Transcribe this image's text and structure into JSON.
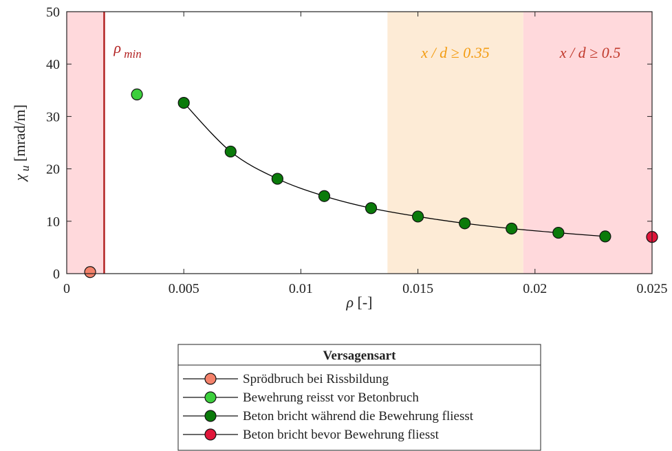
{
  "chart_data": {
    "type": "scatter",
    "xlabel": "ρ [-]",
    "ylabel": "χ u [mrad/m]",
    "xlim": [
      0,
      0.025
    ],
    "ylim": [
      0,
      50
    ],
    "x_ticks": [
      0,
      0.005,
      0.01,
      0.015,
      0.02,
      0.025
    ],
    "x_tick_labels": [
      "0",
      "0.005",
      "0.01",
      "0.015",
      "0.02",
      "0.025"
    ],
    "y_ticks": [
      0,
      10,
      20,
      30,
      40,
      50
    ],
    "y_tick_labels": [
      "0",
      "10",
      "20",
      "30",
      "40",
      "50"
    ],
    "grid": false,
    "regions": [
      {
        "x_from": 0,
        "x_to": 0.0016,
        "color": "#ffd9dc"
      },
      {
        "x_from": 0.0137,
        "x_to": 0.0195,
        "color": "#fdebd6"
      },
      {
        "x_from": 0.0195,
        "x_to": 0.025,
        "color": "#ffd9dc"
      }
    ],
    "vertical_line": {
      "x": 0.0016,
      "color": "#b22222",
      "label": "ρ min"
    },
    "annotations": [
      {
        "text": "x / d ≥ 0.35",
        "color": "#f39c12"
      },
      {
        "text": "x / d ≥ 0.5",
        "color": "#c0392b"
      }
    ],
    "curve": {
      "x": [
        0.005,
        0.007,
        0.009,
        0.011,
        0.013,
        0.015,
        0.017,
        0.019,
        0.021,
        0.023
      ],
      "y": [
        32.6,
        23.3,
        18.1,
        14.8,
        12.5,
        10.9,
        9.6,
        8.6,
        7.8,
        7.1
      ],
      "color": "#000000"
    },
    "series": [
      {
        "name": "Sprödbruch bei Rissbildung",
        "color": "#f4826b",
        "points": [
          {
            "x": 0.001,
            "y": 0.3
          }
        ]
      },
      {
        "name": "Bewehrung reisst vor Betonbruch",
        "color": "#3ccf3c",
        "points": [
          {
            "x": 0.003,
            "y": 34.2
          }
        ]
      },
      {
        "name": "Beton bricht während die Bewehrung fliesst",
        "color": "#0a7a0a",
        "points": [
          {
            "x": 0.005,
            "y": 32.6
          },
          {
            "x": 0.007,
            "y": 23.3
          },
          {
            "x": 0.009,
            "y": 18.1
          },
          {
            "x": 0.011,
            "y": 14.8
          },
          {
            "x": 0.013,
            "y": 12.5
          },
          {
            "x": 0.015,
            "y": 10.9
          },
          {
            "x": 0.017,
            "y": 9.6
          },
          {
            "x": 0.019,
            "y": 8.6
          },
          {
            "x": 0.021,
            "y": 7.8
          },
          {
            "x": 0.023,
            "y": 7.1
          }
        ]
      },
      {
        "name": "Beton bricht bevor Bewehrung fliesst",
        "color": "#e0163a",
        "points": [
          {
            "x": 0.025,
            "y": 7.0
          }
        ]
      }
    ],
    "legend": {
      "title": "Versagensart",
      "placement": "bottom-center"
    }
  }
}
